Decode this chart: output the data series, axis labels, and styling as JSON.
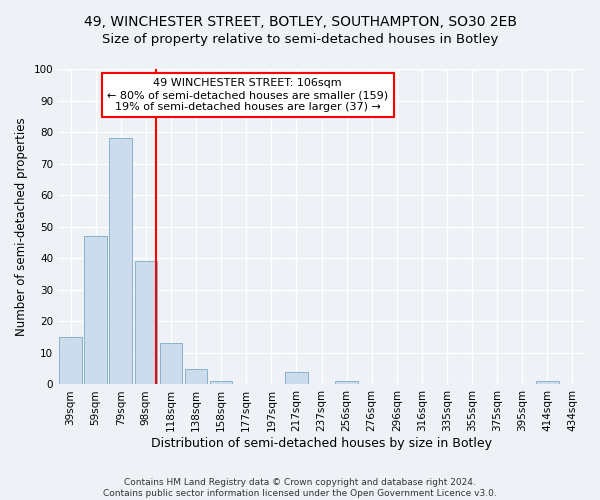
{
  "title1": "49, WINCHESTER STREET, BOTLEY, SOUTHAMPTON, SO30 2EB",
  "title2": "Size of property relative to semi-detached houses in Botley",
  "xlabel": "Distribution of semi-detached houses by size in Botley",
  "ylabel": "Number of semi-detached properties",
  "footer1": "Contains HM Land Registry data © Crown copyright and database right 2024.",
  "footer2": "Contains public sector information licensed under the Open Government Licence v3.0.",
  "bins": [
    "39sqm",
    "59sqm",
    "79sqm",
    "98sqm",
    "118sqm",
    "138sqm",
    "158sqm",
    "177sqm",
    "197sqm",
    "217sqm",
    "237sqm",
    "256sqm",
    "276sqm",
    "296sqm",
    "316sqm",
    "335sqm",
    "355sqm",
    "375sqm",
    "395sqm",
    "414sqm",
    "434sqm"
  ],
  "values": [
    15,
    47,
    78,
    39,
    13,
    5,
    1,
    0,
    0,
    4,
    0,
    1,
    0,
    0,
    0,
    0,
    0,
    0,
    0,
    1,
    0
  ],
  "bar_color": "#ccdcec",
  "bar_edge_color": "#7aaac8",
  "vline_color": "red",
  "vline_pos": 3.4,
  "annotation_line1": "49 WINCHESTER STREET: 106sqm",
  "annotation_line2": "← 80% of semi-detached houses are smaller (159)",
  "annotation_line3": "19% of semi-detached houses are larger (37) →",
  "annotation_box_facecolor": "white",
  "annotation_box_edgecolor": "red",
  "ylim": [
    0,
    100
  ],
  "yticks": [
    0,
    10,
    20,
    30,
    40,
    50,
    60,
    70,
    80,
    90,
    100
  ],
  "bg_color": "#eef2f7",
  "grid_color": "white",
  "title1_fontsize": 10,
  "title2_fontsize": 9.5,
  "xlabel_fontsize": 9,
  "ylabel_fontsize": 8.5,
  "tick_fontsize": 7.5,
  "annot_fontsize": 8,
  "footer_fontsize": 6.5
}
